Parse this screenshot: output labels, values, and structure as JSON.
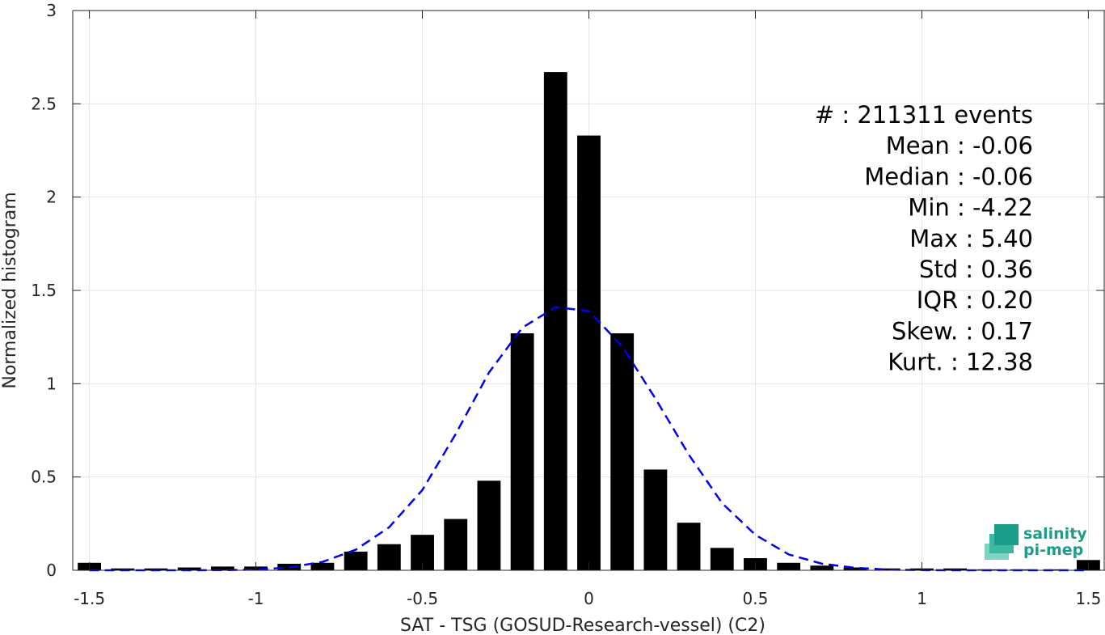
{
  "chart_data": {
    "type": "bar",
    "xlabel": "SAT - TSG (GOSUD-Research-vessel) (C2)",
    "ylabel": "Normalized histogram",
    "xlim": [
      -1.55,
      1.55
    ],
    "ylim": [
      0,
      3
    ],
    "x_ticks": [
      "-1.5",
      "-1",
      "-0.5",
      "0",
      "0.5",
      "1",
      "1.5"
    ],
    "x_tick_values": [
      -1.5,
      -1,
      -0.5,
      0,
      0.5,
      1,
      1.5
    ],
    "y_ticks": [
      "0",
      "0.5",
      "1",
      "1.5",
      "2",
      "2.5",
      "3"
    ],
    "y_tick_values": [
      0,
      0.5,
      1,
      1.5,
      2,
      2.5,
      3
    ],
    "grid": true,
    "bar_width": 0.07,
    "bar_color": "#000000",
    "bars": {
      "x": [
        -1.5,
        -1.4,
        -1.3,
        -1.2,
        -1.1,
        -1.0,
        -0.9,
        -0.8,
        -0.7,
        -0.6,
        -0.5,
        -0.4,
        -0.3,
        -0.2,
        -0.1,
        0.0,
        0.1,
        0.2,
        0.3,
        0.4,
        0.5,
        0.6,
        0.7,
        0.8,
        0.9,
        1.0,
        1.1,
        1.2,
        1.3,
        1.4,
        1.5
      ],
      "values": [
        0.04,
        0.01,
        0.01,
        0.015,
        0.02,
        0.02,
        0.035,
        0.04,
        0.1,
        0.14,
        0.19,
        0.275,
        0.48,
        1.27,
        2.67,
        2.33,
        1.27,
        0.54,
        0.255,
        0.12,
        0.065,
        0.04,
        0.025,
        0.015,
        0.01,
        0.01,
        0.01,
        0.005,
        0.005,
        0.005,
        0.055
      ]
    },
    "fit_curve": {
      "style": "dashed",
      "color": "#0000ee",
      "x": [
        -1.5,
        -1.4,
        -1.3,
        -1.2,
        -1.1,
        -1.0,
        -0.9,
        -0.8,
        -0.7,
        -0.6,
        -0.5,
        -0.4,
        -0.3,
        -0.2,
        -0.1,
        0.0,
        0.1,
        0.2,
        0.3,
        0.4,
        0.5,
        0.6,
        0.7,
        0.8,
        0.9,
        1.0,
        1.1,
        1.2,
        1.3,
        1.4,
        1.5
      ],
      "y": [
        0.0,
        0.0,
        0.0,
        0.0,
        0.001,
        0.004,
        0.015,
        0.045,
        0.11,
        0.23,
        0.43,
        0.73,
        1.06,
        1.3,
        1.41,
        1.39,
        1.2,
        0.92,
        0.62,
        0.36,
        0.19,
        0.085,
        0.035,
        0.013,
        0.004,
        0.001,
        0.0,
        0.0,
        0.0,
        0.0,
        0.0
      ]
    },
    "stats": [
      {
        "label": "#  ",
        "value": ": 211311 events"
      },
      {
        "label": "Mean",
        "value": ": -0.06"
      },
      {
        "label": "Median",
        "value": ": -0.06"
      },
      {
        "label": "Min",
        "value": ": -4.22"
      },
      {
        "label": "Max",
        "value": ": 5.40"
      },
      {
        "label": "Std",
        "value": ": 0.36"
      },
      {
        "label": "IQR",
        "value": ": 0.20"
      },
      {
        "label": "Skew.",
        "value": ": 0.17"
      },
      {
        "label": "Kurt.",
        "value": ": 12.38"
      }
    ]
  },
  "logo": {
    "line1": "salinity",
    "line2": "pi-mep",
    "color": "#1a9e8a"
  }
}
